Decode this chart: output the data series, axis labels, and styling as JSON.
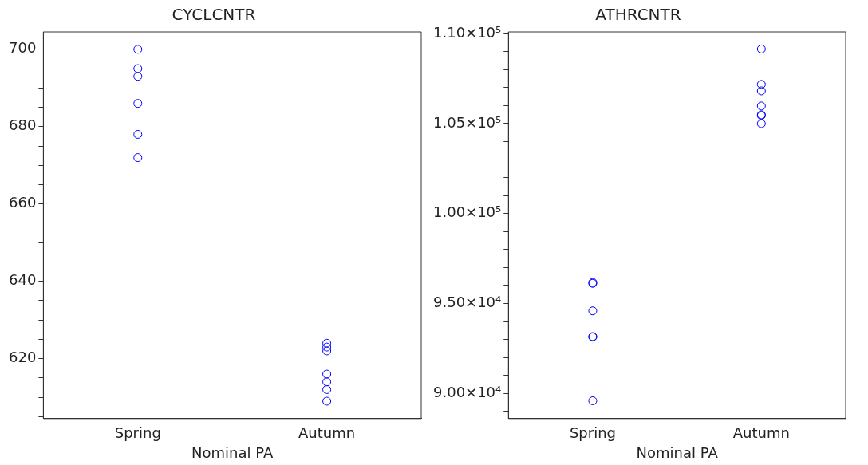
{
  "chart_data": [
    {
      "type": "scatter",
      "title": "CYCLCNTR",
      "xlabel": "Nominal PA",
      "categories": [
        "Spring",
        "Autumn"
      ],
      "marker": "circle",
      "grid": false,
      "legend": false,
      "series": [
        {
          "color": "#0000ff",
          "x": [
            "Spring",
            "Spring",
            "Spring",
            "Spring",
            "Spring",
            "Spring"
          ],
          "values": [
            700,
            695,
            693,
            686,
            678,
            672
          ]
        },
        {
          "color": "#0000ff",
          "x": [
            "Autumn",
            "Autumn",
            "Autumn",
            "Autumn",
            "Autumn",
            "Autumn",
            "Autumn"
          ],
          "values": [
            624,
            623,
            622,
            616,
            614,
            612,
            609
          ]
        }
      ],
      "ylim": [
        604.5,
        704.5
      ],
      "yticks": [
        {
          "value": 605,
          "label": null
        },
        {
          "value": 610,
          "label": null
        },
        {
          "value": 615,
          "label": null
        },
        620,
        {
          "value": 625,
          "label": null
        },
        {
          "value": 630,
          "label": null
        },
        {
          "value": 635,
          "label": null
        },
        640,
        {
          "value": 645,
          "label": null
        },
        {
          "value": 650,
          "label": null
        },
        {
          "value": 655,
          "label": null
        },
        660,
        {
          "value": 665,
          "label": null
        },
        {
          "value": 670,
          "label": null
        },
        {
          "value": 675,
          "label": null
        },
        680,
        {
          "value": 685,
          "label": null
        },
        {
          "value": 690,
          "label": null
        },
        {
          "value": 695,
          "label": null
        },
        700
      ]
    },
    {
      "type": "scatter",
      "title": "ATHRCNTR",
      "xlabel": "Nominal PA",
      "categories": [
        "Spring",
        "Autumn"
      ],
      "marker": "circle",
      "grid": false,
      "legend": false,
      "series": [
        {
          "color": "#0000ff",
          "x": [
            "Spring",
            "Spring",
            "Spring",
            "Spring",
            "Spring",
            "Spring"
          ],
          "values": [
            96170,
            96120,
            94590,
            93160,
            93140,
            89590
          ]
        },
        {
          "color": "#0000ff",
          "x": [
            "Autumn",
            "Autumn",
            "Autumn",
            "Autumn",
            "Autumn",
            "Autumn",
            "Autumn"
          ],
          "values": [
            109150,
            107180,
            106820,
            105980,
            105490,
            105450,
            105000
          ]
        }
      ],
      "ylim": [
        88600,
        110100
      ],
      "yticks": [
        {
          "value": 89000,
          "label": null
        },
        {
          "value": 90000,
          "label": "9.00×10⁴"
        },
        {
          "value": 91000,
          "label": null
        },
        {
          "value": 92000,
          "label": null
        },
        {
          "value": 93000,
          "label": null
        },
        {
          "value": 94000,
          "label": null
        },
        {
          "value": 95000,
          "label": "9.50×10⁴"
        },
        {
          "value": 96000,
          "label": null
        },
        {
          "value": 97000,
          "label": null
        },
        {
          "value": 98000,
          "label": null
        },
        {
          "value": 99000,
          "label": null
        },
        {
          "value": 100000,
          "label": "1.00×10⁵"
        },
        {
          "value": 101000,
          "label": null
        },
        {
          "value": 102000,
          "label": null
        },
        {
          "value": 103000,
          "label": null
        },
        {
          "value": 104000,
          "label": null
        },
        {
          "value": 105000,
          "label": "1.05×10⁵"
        },
        {
          "value": 106000,
          "label": null
        },
        {
          "value": 107000,
          "label": null
        },
        {
          "value": 108000,
          "label": null
        },
        {
          "value": 109000,
          "label": null
        },
        {
          "value": 110000,
          "label": "1.10×10⁵"
        }
      ]
    }
  ]
}
